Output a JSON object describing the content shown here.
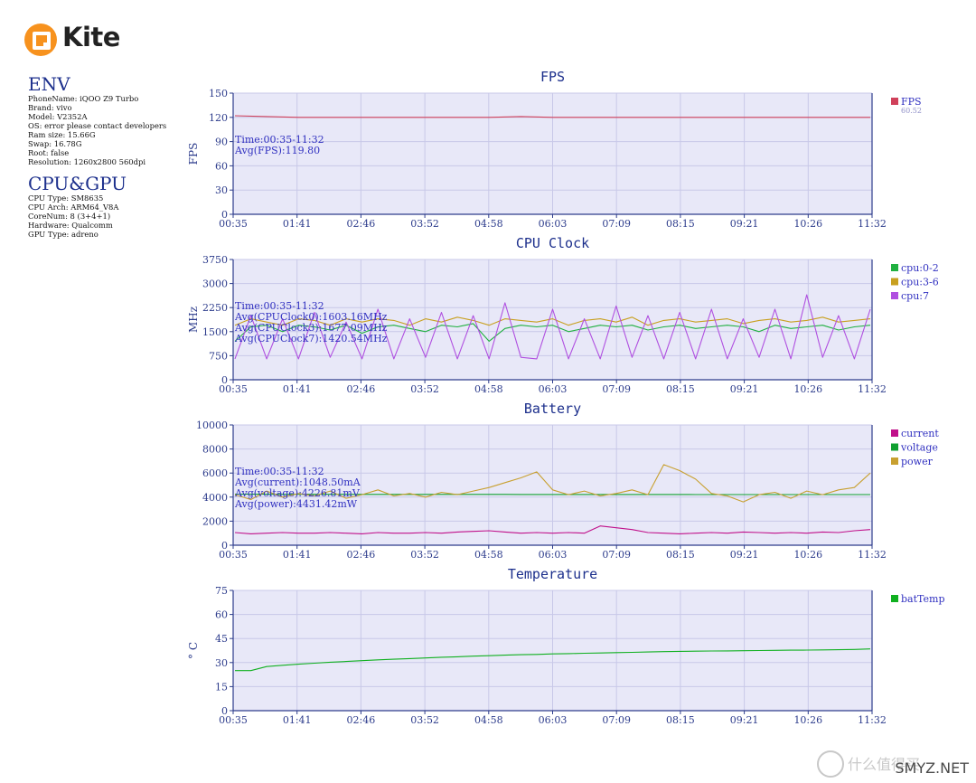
{
  "logo": {
    "text": "Kite"
  },
  "env": {
    "title": "ENV",
    "lines": [
      "PhoneName: iQOO Z9 Turbo",
      "Brand: vivo",
      "Model: V2352A",
      "OS: error please contact developers",
      "Ram size: 15.66G",
      "Swap: 16.78G",
      "Root: false",
      "Resolution: 1260x2800 560dpi"
    ]
  },
  "cpugpu": {
    "title": "CPU&GPU",
    "lines": [
      "CPU Type: SM8635",
      "CPU Arch: ARM64_V8A",
      "CoreNum: 8 (3+4+1)",
      "Hardware: Qualcomm",
      "GPU Type: adreno"
    ]
  },
  "watermark": {
    "text": "什么值得买",
    "site": "SMYZ.NET"
  },
  "colors": {
    "plot_bg": "#e8e8f8",
    "grid": "#c8c8e8",
    "axis": "#2d3c8c",
    "fps": "#d0405a",
    "cpu02": "#20b040",
    "cpu36": "#c8a020",
    "cpu7": "#b050e0",
    "current": "#c0108a",
    "voltage": "#10a030",
    "power": "#c8a030",
    "batTemp": "#10b020"
  },
  "chart_data": [
    {
      "type": "line",
      "title": "FPS",
      "ylabel": "FPS",
      "ylim": [
        0,
        150
      ],
      "yticks": [
        "0",
        "30",
        "60",
        "90",
        "120",
        "150"
      ],
      "xticks": [
        "00:35",
        "01:41",
        "02:46",
        "03:52",
        "04:58",
        "06:03",
        "07:09",
        "08:15",
        "09:21",
        "10:26",
        "11:32"
      ],
      "info": [
        "Time:00:35-11:32",
        "Avg(FPS):119.80"
      ],
      "legend": [
        "FPS"
      ],
      "legend_sub": "60.52",
      "series": [
        {
          "name": "FPS",
          "color": "fps",
          "values": [
            122,
            121,
            120,
            120,
            120,
            120,
            120,
            120,
            120,
            121,
            120,
            120,
            120,
            120,
            120,
            120,
            120,
            120,
            120,
            120,
            120
          ]
        }
      ]
    },
    {
      "type": "line",
      "title": "CPU Clock",
      "ylabel": "MHz",
      "ylim": [
        0,
        3750
      ],
      "yticks": [
        "0",
        "750",
        "1500",
        "2250",
        "3000",
        "3750"
      ],
      "xticks": [
        "00:35",
        "01:41",
        "02:46",
        "03:52",
        "04:58",
        "06:03",
        "07:09",
        "08:15",
        "09:21",
        "10:26",
        "11:32"
      ],
      "info": [
        "Time:00:35-11:32",
        "Avg(CPUClock0):1603.16MHz",
        "Avg(CPUClock3):1677.09MHz",
        "Avg(CPUClock7):1420.54MHz"
      ],
      "legend": [
        "cpu:0-2",
        "cpu:3-6",
        "cpu:7"
      ],
      "series": [
        {
          "name": "cpu:0-2",
          "color": "cpu02",
          "values": [
            1200,
            1650,
            1700,
            1500,
            1700,
            1650,
            1550,
            1700,
            1450,
            1650,
            1700,
            1600,
            1500,
            1700,
            1650,
            1750,
            1200,
            1600,
            1700,
            1650,
            1700,
            1500,
            1600,
            1700,
            1650,
            1700,
            1550,
            1650,
            1700,
            1600,
            1650,
            1700,
            1650,
            1500,
            1700,
            1600,
            1650,
            1700,
            1550,
            1650,
            1700
          ]
        },
        {
          "name": "cpu:3-6",
          "color": "cpu36",
          "values": [
            1700,
            1900,
            1800,
            1700,
            1900,
            1850,
            1700,
            1900,
            1800,
            1900,
            1850,
            1700,
            1900,
            1800,
            1950,
            1850,
            1700,
            1900,
            1850,
            1800,
            1900,
            1700,
            1850,
            1900,
            1800,
            1950,
            1700,
            1850,
            1900,
            1800,
            1850,
            1900,
            1750,
            1850,
            1900,
            1800,
            1850,
            1950,
            1800,
            1850,
            1900
          ]
        },
        {
          "name": "cpu:7",
          "color": "cpu7",
          "values": [
            650,
            2000,
            650,
            1900,
            650,
            2100,
            700,
            1800,
            650,
            2200,
            650,
            1900,
            700,
            2100,
            650,
            2000,
            650,
            2400,
            700,
            650,
            2200,
            650,
            1900,
            650,
            2300,
            700,
            2000,
            650,
            2100,
            650,
            2200,
            650,
            1900,
            700,
            2200,
            650,
            2650,
            700,
            2000,
            650,
            2200
          ]
        }
      ]
    },
    {
      "type": "line",
      "title": "Battery",
      "ylabel": "",
      "ylim": [
        0,
        10000
      ],
      "yticks": [
        "0",
        "2000",
        "4000",
        "6000",
        "8000",
        "10000"
      ],
      "xticks": [
        "00:35",
        "01:41",
        "02:46",
        "03:52",
        "04:58",
        "06:03",
        "07:09",
        "08:15",
        "09:21",
        "10:26",
        "11:32"
      ],
      "info": [
        "Time:00:35-11:32",
        "Avg(current):1048.50mA",
        "Avg(voltage):4226.81mV",
        "Avg(power):4431.42mW"
      ],
      "legend": [
        "current",
        "voltage",
        "power"
      ],
      "series": [
        {
          "name": "current",
          "color": "current",
          "values": [
            1050,
            950,
            1000,
            1050,
            1000,
            1000,
            1050,
            1000,
            950,
            1050,
            1000,
            1000,
            1050,
            1000,
            1100,
            1150,
            1200,
            1100,
            1000,
            1050,
            1000,
            1050,
            1000,
            1600,
            1450,
            1300,
            1050,
            1000,
            950,
            1000,
            1050,
            1000,
            1100,
            1050,
            1000,
            1050,
            1000,
            1100,
            1050,
            1200,
            1300
          ]
        },
        {
          "name": "voltage",
          "color": "voltage",
          "values": [
            4250,
            4240,
            4240,
            4235,
            4235,
            4230,
            4230,
            4230,
            4228,
            4228,
            4226,
            4226,
            4225,
            4225,
            4224,
            4223,
            4222,
            4222,
            4221,
            4220,
            4220,
            4219,
            4218,
            4218,
            4217,
            4216,
            4216,
            4215,
            4215,
            4214,
            4214,
            4213,
            4213,
            4212,
            4212,
            4211,
            4211,
            4210,
            4210,
            4210,
            4210
          ]
        },
        {
          "name": "power",
          "color": "power",
          "values": [
            4200,
            3800,
            4500,
            4000,
            4300,
            4100,
            4500,
            3900,
            4200,
            4600,
            4100,
            4300,
            4000,
            4400,
            4200,
            4500,
            4800,
            5200,
            5600,
            6100,
            4600,
            4200,
            4500,
            4100,
            4300,
            4600,
            4200,
            6700,
            6200,
            5500,
            4300,
            4100,
            3600,
            4200,
            4400,
            3900,
            4500,
            4200,
            4600,
            4800,
            6000
          ]
        }
      ]
    },
    {
      "type": "line",
      "title": "Temperature",
      "ylabel": "° C",
      "ylim": [
        0,
        75
      ],
      "yticks": [
        "0",
        "15",
        "30",
        "45",
        "60",
        "75"
      ],
      "xticks": [
        "00:35",
        "01:41",
        "02:46",
        "03:52",
        "04:58",
        "06:03",
        "07:09",
        "08:15",
        "09:21",
        "10:26",
        "11:32"
      ],
      "info": [],
      "legend": [
        "batTemp"
      ],
      "series": [
        {
          "name": "batTemp",
          "color": "batTemp",
          "values": [
            25,
            25,
            27.5,
            28.3,
            29,
            29.6,
            30.2,
            30.7,
            31.2,
            31.7,
            32.1,
            32.5,
            32.9,
            33.3,
            33.6,
            34,
            34.3,
            34.6,
            34.9,
            35.1,
            35.4,
            35.6,
            35.8,
            36,
            36.2,
            36.4,
            36.6,
            36.8,
            37,
            37.1,
            37.2,
            37.3,
            37.4,
            37.5,
            37.6,
            37.7,
            37.8,
            37.9,
            38,
            38.2,
            38.5
          ]
        }
      ]
    }
  ]
}
